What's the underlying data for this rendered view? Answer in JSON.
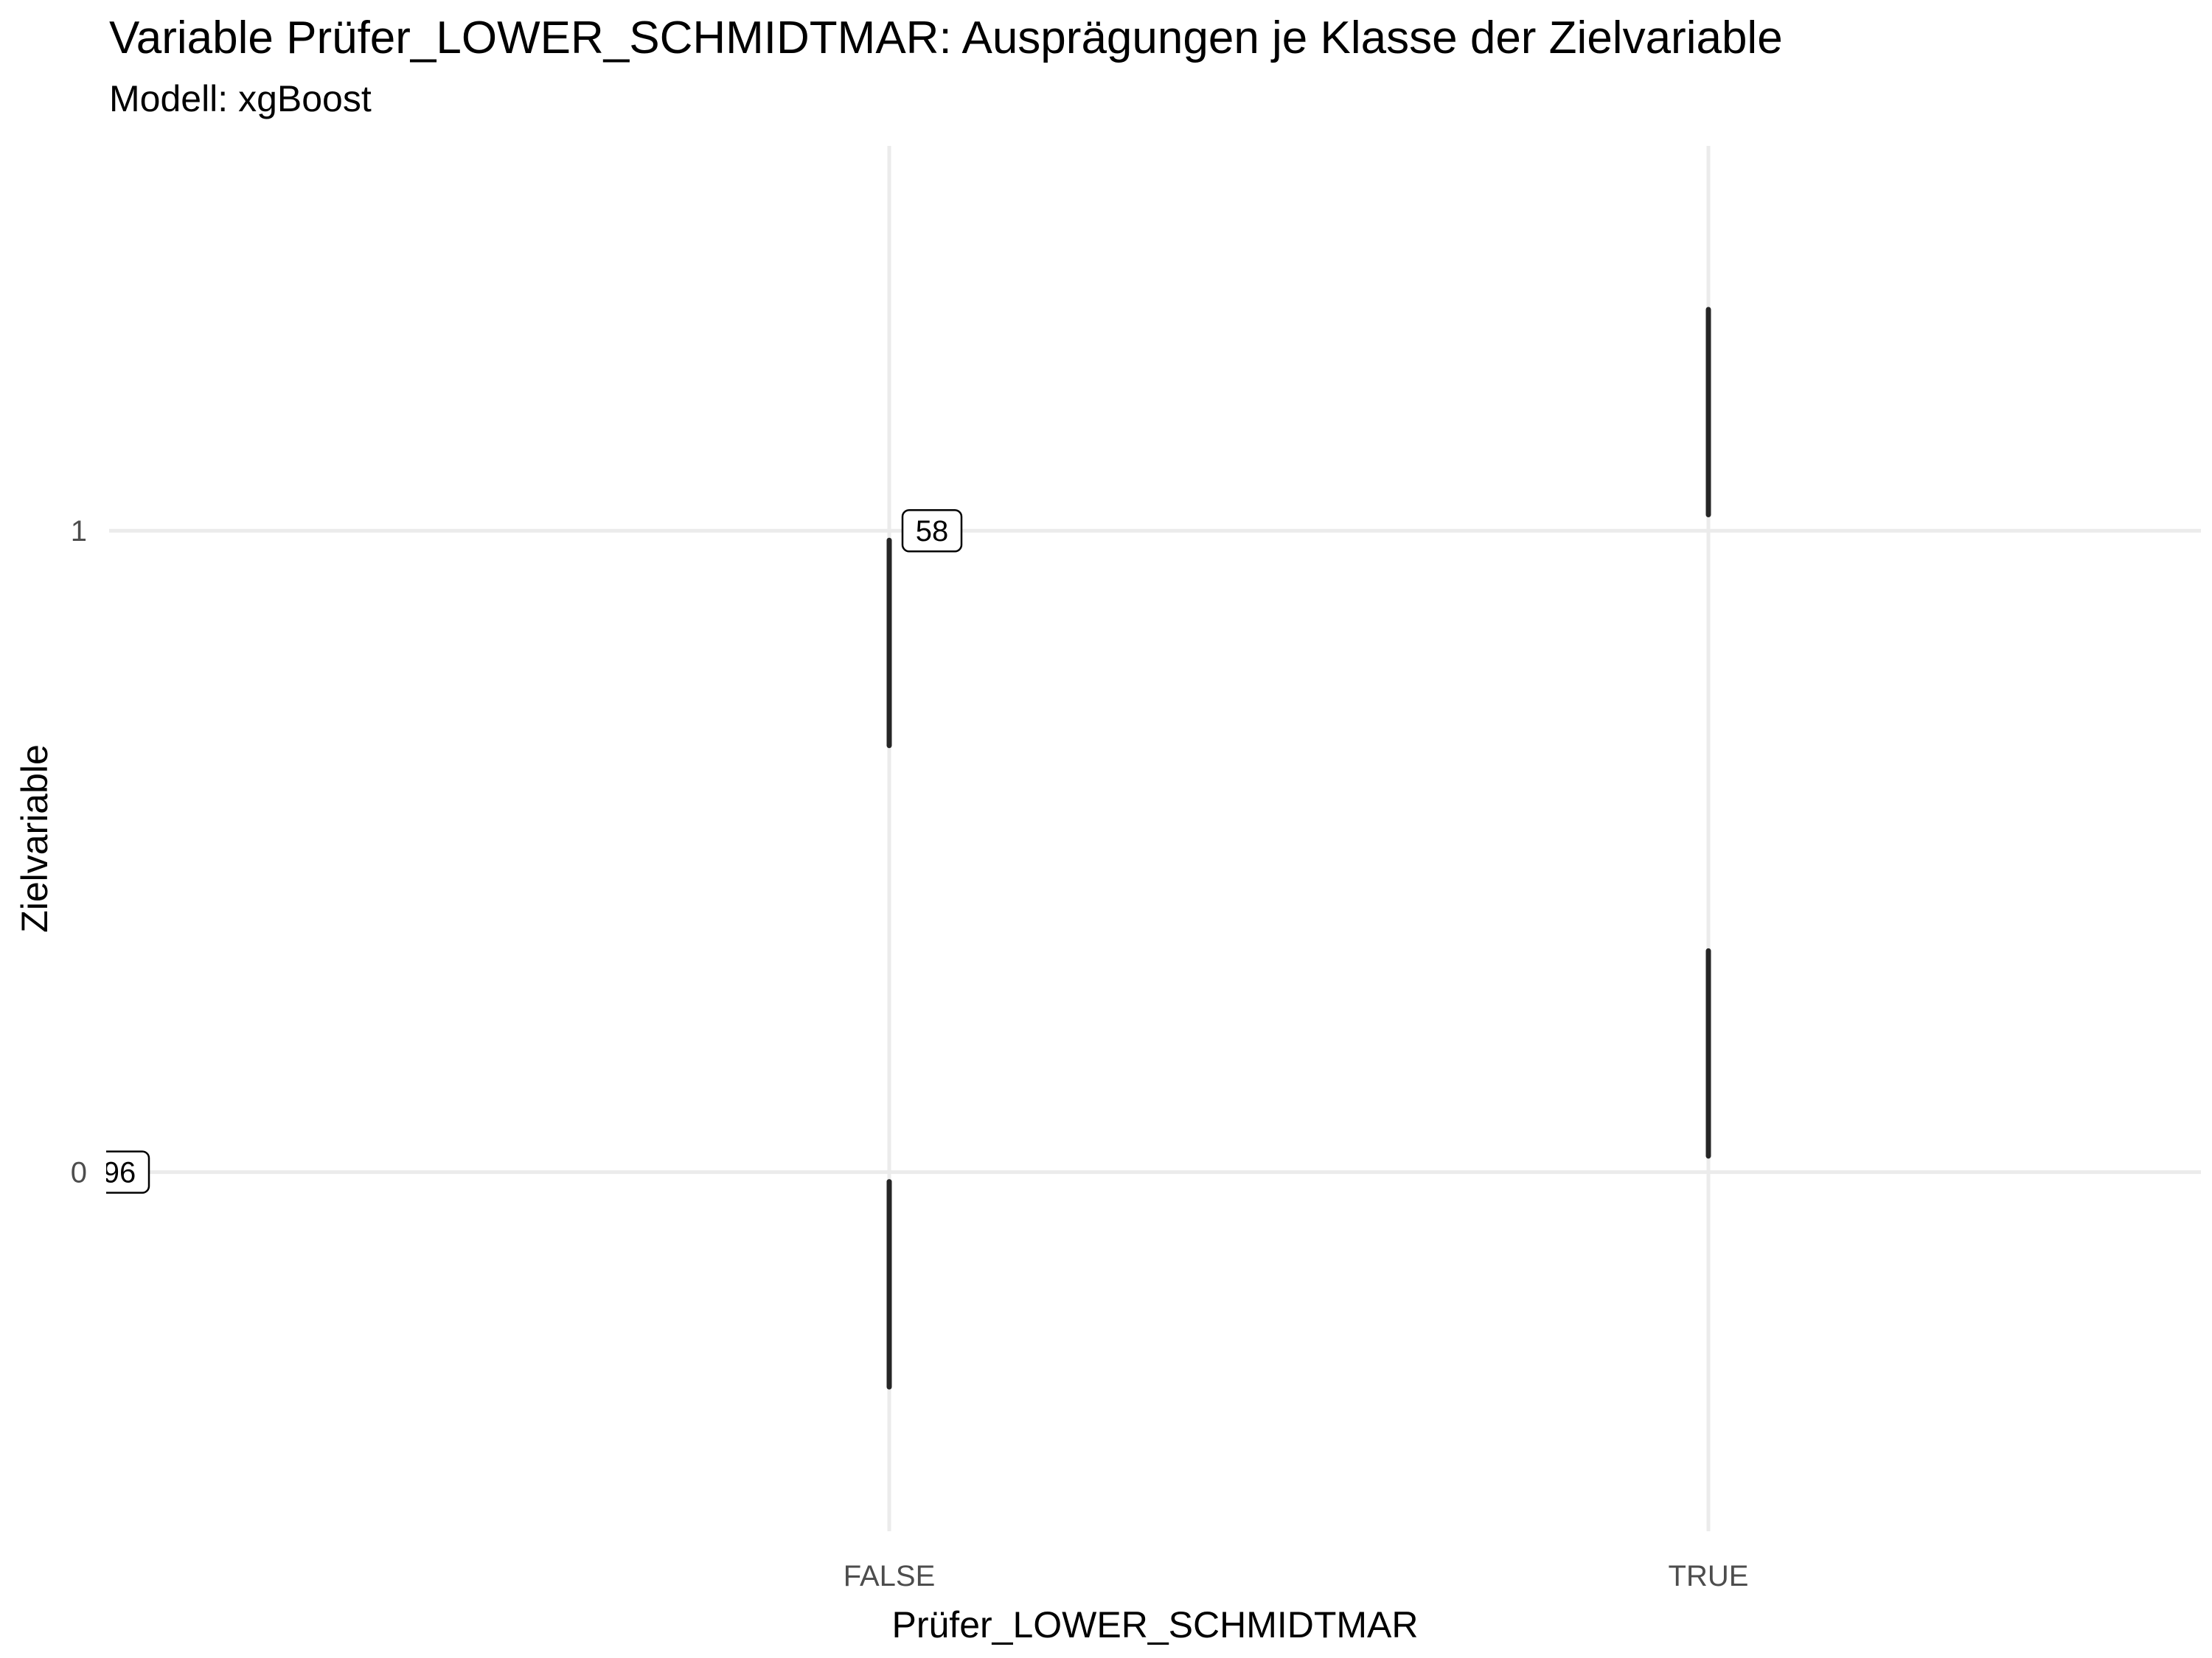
{
  "chart_data": {
    "type": "scatter",
    "title": "Variable Prüfer_LOWER_SCHMIDTMAR: Ausprägungen je Klasse der Zielvariable",
    "subtitle": "Modell: xgBoost",
    "xlabel": "Prüfer_LOWER_SCHMIDTMAR",
    "ylabel": "Zielvariable",
    "x_categories": [
      "FALSE",
      "TRUE"
    ],
    "y_ticks": [
      "0",
      "1"
    ],
    "ylim": [
      -0.56,
      1.6
    ],
    "grid": true,
    "points": [
      {
        "x": "FALSE",
        "y_from": 0.665,
        "y_to": 0.985
      },
      {
        "x": "FALSE",
        "y_from": -0.335,
        "y_to": -0.015
      },
      {
        "x": "TRUE",
        "y_from": 1.025,
        "y_to": 1.345
      },
      {
        "x": "TRUE",
        "y_from": 0.025,
        "y_to": 0.345
      }
    ],
    "annotations": [
      {
        "text": "58",
        "x": "FALSE",
        "y": 1
      },
      {
        "text": "96",
        "y": 0
      }
    ]
  }
}
